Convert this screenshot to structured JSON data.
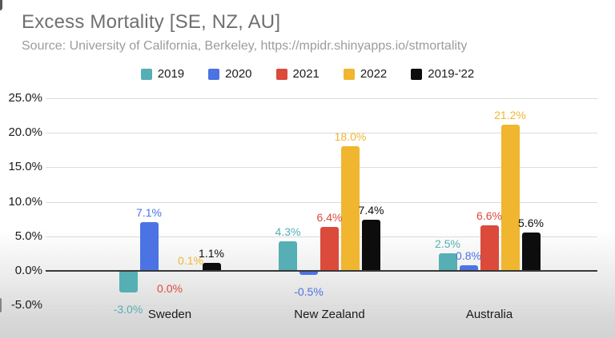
{
  "header": {
    "title": "Excess Mortality [SE, NZ, AU]",
    "source": "Source: University of California, Berkeley, https://mpidr.shinyapps.io/stmortality"
  },
  "colors": {
    "series_2019": "#55afb4",
    "series_2020": "#4b73e3",
    "series_2021": "#db4a3b",
    "series_2022": "#f0b62f",
    "series_2019_22": "#0d0d0d",
    "grid": "#dbdbdb",
    "zero_axis": "#383838",
    "title_text": "#6f6f6f",
    "source_text": "#9c9c9c",
    "tick_text": "#1a1a1a"
  },
  "chart_data": {
    "type": "bar",
    "title": "Excess Mortality [SE, NZ, AU]",
    "subtitle": "Source: University of California, Berkeley, https://mpidr.shinyapps.io/stmortality",
    "categories": [
      "Sweden",
      "New Zealand",
      "Australia"
    ],
    "series": [
      {
        "name": "2019",
        "color": "#55afb4",
        "values": [
          -3.0,
          4.3,
          2.5
        ],
        "labels": [
          "-3.0%",
          "4.3%",
          "2.5%"
        ]
      },
      {
        "name": "2020",
        "color": "#4b73e3",
        "values": [
          7.1,
          -0.5,
          0.8
        ],
        "labels": [
          "7.1%",
          "-0.5%",
          "0.8%"
        ]
      },
      {
        "name": "2021",
        "color": "#db4a3b",
        "values": [
          0.0,
          6.4,
          6.6
        ],
        "labels": [
          "0.0%",
          "6.4%",
          "6.6%"
        ]
      },
      {
        "name": "2022",
        "color": "#f0b62f",
        "values": [
          0.1,
          18.0,
          21.2
        ],
        "labels": [
          "0.1%",
          "18.0%",
          "21.2%"
        ]
      },
      {
        "name": "2019-'22",
        "color": "#0d0d0d",
        "values": [
          1.1,
          7.4,
          5.6
        ],
        "labels": [
          "1.1%",
          "7.4%",
          "5.6%"
        ]
      }
    ],
    "ylim": [
      -5,
      25
    ],
    "yticks": [
      {
        "value": 25,
        "label": "25.0%"
      },
      {
        "value": 20,
        "label": "20.0%"
      },
      {
        "value": 15,
        "label": "15.0%"
      },
      {
        "value": 10,
        "label": "10.0%"
      },
      {
        "value": 5,
        "label": "5.0%"
      },
      {
        "value": 0,
        "label": "0.0%"
      },
      {
        "value": -5,
        "label": "-5.0%"
      }
    ],
    "grid": true,
    "legend_position": "top",
    "ylabel": "",
    "xlabel": ""
  }
}
